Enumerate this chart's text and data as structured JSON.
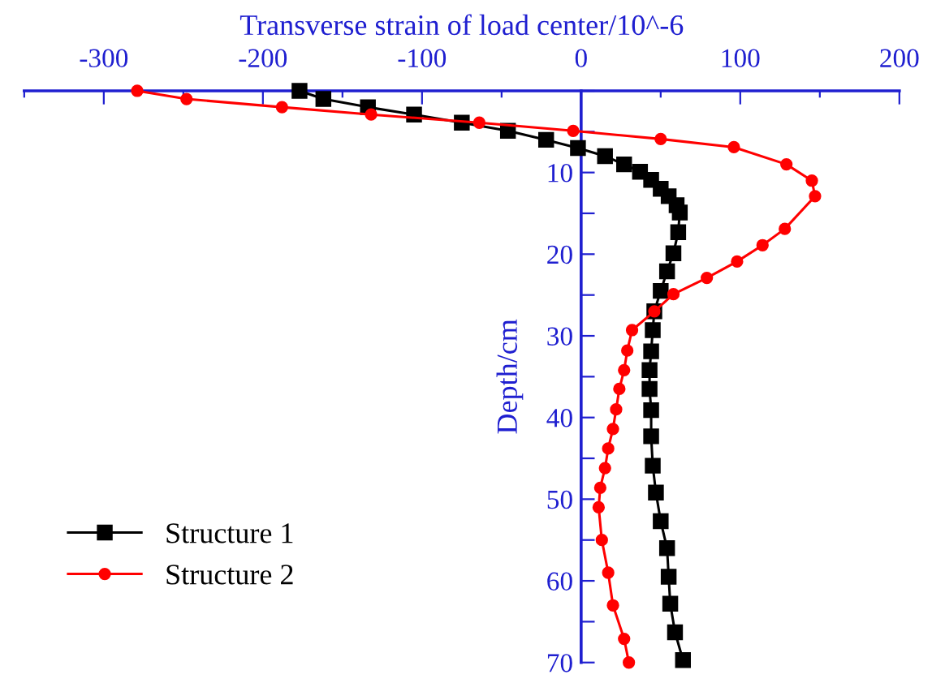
{
  "chart_data": {
    "type": "line",
    "xlabel": "Transverse strain of load center/10^-6",
    "ylabel": "Depth/cm",
    "xlim": [
      -350,
      200
    ],
    "ylim": [
      70,
      0
    ],
    "xticks": [
      {
        "value": -350,
        "label": null
      },
      -300,
      {
        "value": -250,
        "label": null
      },
      -200,
      {
        "value": -150,
        "label": null
      },
      -100,
      {
        "value": -50,
        "label": null
      },
      0,
      {
        "value": 50,
        "label": null
      },
      100,
      {
        "value": 150,
        "label": null
      },
      200
    ],
    "yticks": [
      {
        "value": 0,
        "label": null
      },
      {
        "value": 5,
        "label": null
      },
      10,
      {
        "value": 15,
        "label": null
      },
      20,
      {
        "value": 25,
        "label": null
      },
      30,
      {
        "value": 35,
        "label": null
      },
      40,
      {
        "value": 45,
        "label": null
      },
      50,
      {
        "value": 55,
        "label": null
      },
      60,
      {
        "value": 65,
        "label": null
      },
      70
    ],
    "grid": false,
    "legend": "bottom left",
    "line_style": "solid",
    "series": [
      {
        "name": "Structure 1",
        "color": "#000000",
        "marker": "square",
        "x": [
          -177,
          -162,
          -134,
          -105,
          -75,
          -46,
          -22,
          -2,
          15,
          27,
          37,
          44,
          50,
          55,
          60,
          62,
          61,
          58,
          54,
          50,
          46,
          45,
          44,
          43,
          43,
          44,
          44,
          45,
          47,
          50,
          54,
          55,
          56,
          59,
          64
        ],
        "values": [
          0,
          1,
          2,
          2.9,
          3.9,
          4.9,
          6,
          7,
          8,
          9,
          9.9,
          10.9,
          12,
          12.9,
          14,
          14.9,
          17.3,
          19.9,
          22.1,
          24.5,
          27,
          29.3,
          31.9,
          34.2,
          36.5,
          39.1,
          42.3,
          45.9,
          49.2,
          52.7,
          56,
          59.5,
          62.8,
          66.3,
          69.7
        ]
      },
      {
        "name": "Structure 2",
        "color": "#ff0000",
        "marker": "circle",
        "x": [
          -279,
          -248,
          -188,
          -132,
          -64,
          -5,
          50,
          96,
          129,
          145,
          147,
          128,
          114,
          98,
          79,
          58,
          46,
          32,
          29,
          27,
          24,
          22,
          20,
          17,
          15,
          12,
          11,
          13,
          17,
          20,
          27,
          30
        ],
        "values": [
          0,
          1,
          2,
          2.9,
          3.9,
          4.9,
          5.9,
          6.9,
          9,
          11,
          12.9,
          16.9,
          18.9,
          20.9,
          22.9,
          24.9,
          27,
          29.3,
          31.8,
          34.2,
          36.5,
          39,
          41.4,
          43.8,
          46.2,
          48.6,
          51,
          55,
          59,
          63,
          67.1,
          70
        ]
      }
    ]
  }
}
